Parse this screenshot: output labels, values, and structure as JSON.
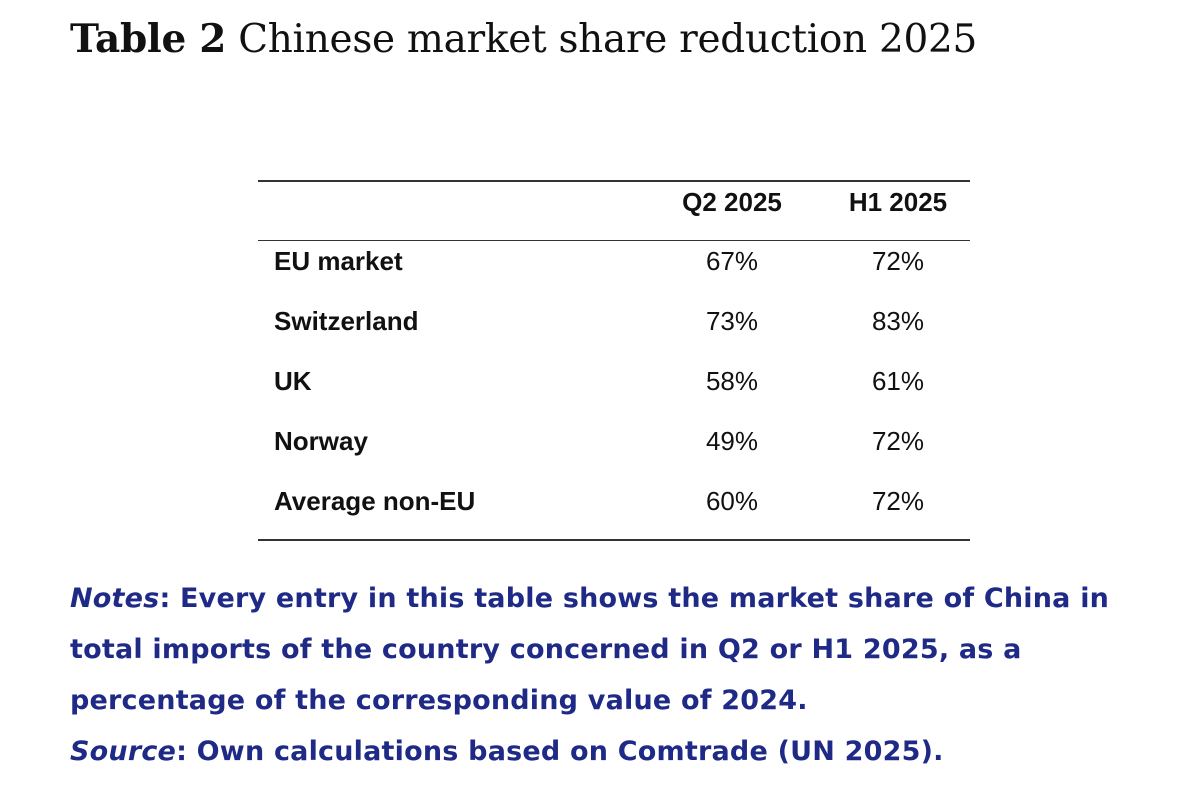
{
  "title": {
    "label": "Table 2",
    "text": "Chinese market share reduction 2025"
  },
  "table": {
    "columns": [
      "Q2 2025",
      "H1 2025"
    ],
    "rows": [
      {
        "label": "EU market",
        "values": [
          "67%",
          "72%"
        ]
      },
      {
        "label": "Switzerland",
        "values": [
          "73%",
          "83%"
        ]
      },
      {
        "label": "UK",
        "values": [
          "58%",
          "61%"
        ]
      },
      {
        "label": "Norway",
        "values": [
          "49%",
          "72%"
        ]
      },
      {
        "label": "Average non-EU",
        "values": [
          "60%",
          "72%"
        ]
      }
    ]
  },
  "notes": {
    "notes_label": "Notes",
    "notes_text": ": Every entry in this table shows the market share of China in total imports of the country concerned in Q2 or H1 2025, as a percentage of the corresponding value of 2024.",
    "source_label": "Source",
    "source_text": ": Own calculations based on Comtrade (UN 2025)."
  },
  "colors": {
    "text": "#111111",
    "notes": "#1f2a86",
    "rule": "#333333"
  }
}
